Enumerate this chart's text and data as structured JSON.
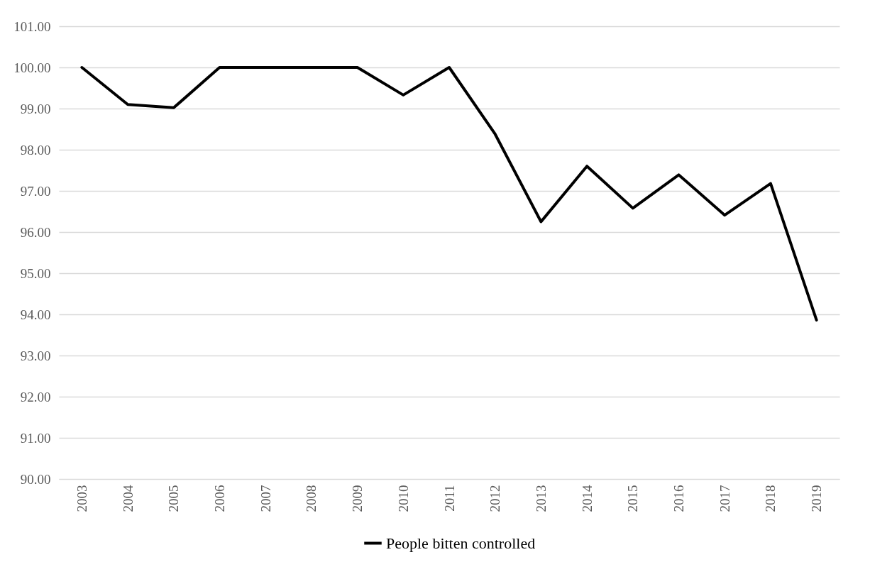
{
  "chart_data": {
    "type": "line",
    "categories": [
      "2003",
      "2004",
      "2005",
      "2006",
      "2007",
      "2008",
      "2009",
      "2010",
      "2011",
      "2012",
      "2013",
      "2014",
      "2015",
      "2016",
      "2017",
      "2018",
      "2019"
    ],
    "series": [
      {
        "name": "People bitten controlled",
        "color": "#000000",
        "values": [
          100,
          99.1,
          99.02,
          100,
          100,
          100,
          100,
          99.33,
          100,
          98.38,
          96.25,
          97.6,
          96.58,
          97.39,
          96.41,
          97.18,
          93.86
        ]
      }
    ],
    "ylim": [
      90,
      101
    ],
    "yticks": [
      {
        "value": 90,
        "label": "90.00"
      },
      {
        "value": 91,
        "label": "91.00"
      },
      {
        "value": 92,
        "label": "92.00"
      },
      {
        "value": 93,
        "label": "93.00"
      },
      {
        "value": 94,
        "label": "94.00"
      },
      {
        "value": 95,
        "label": "95.00"
      },
      {
        "value": 96,
        "label": "96.00"
      },
      {
        "value": 97,
        "label": "97.00"
      },
      {
        "value": 98,
        "label": "98.00"
      },
      {
        "value": 99,
        "label": "99.00"
      },
      {
        "value": 100,
        "label": "100.00"
      },
      {
        "value": 101,
        "label": "101.00"
      }
    ],
    "grid": "y",
    "legend": "bottom",
    "line_style": "solid"
  }
}
